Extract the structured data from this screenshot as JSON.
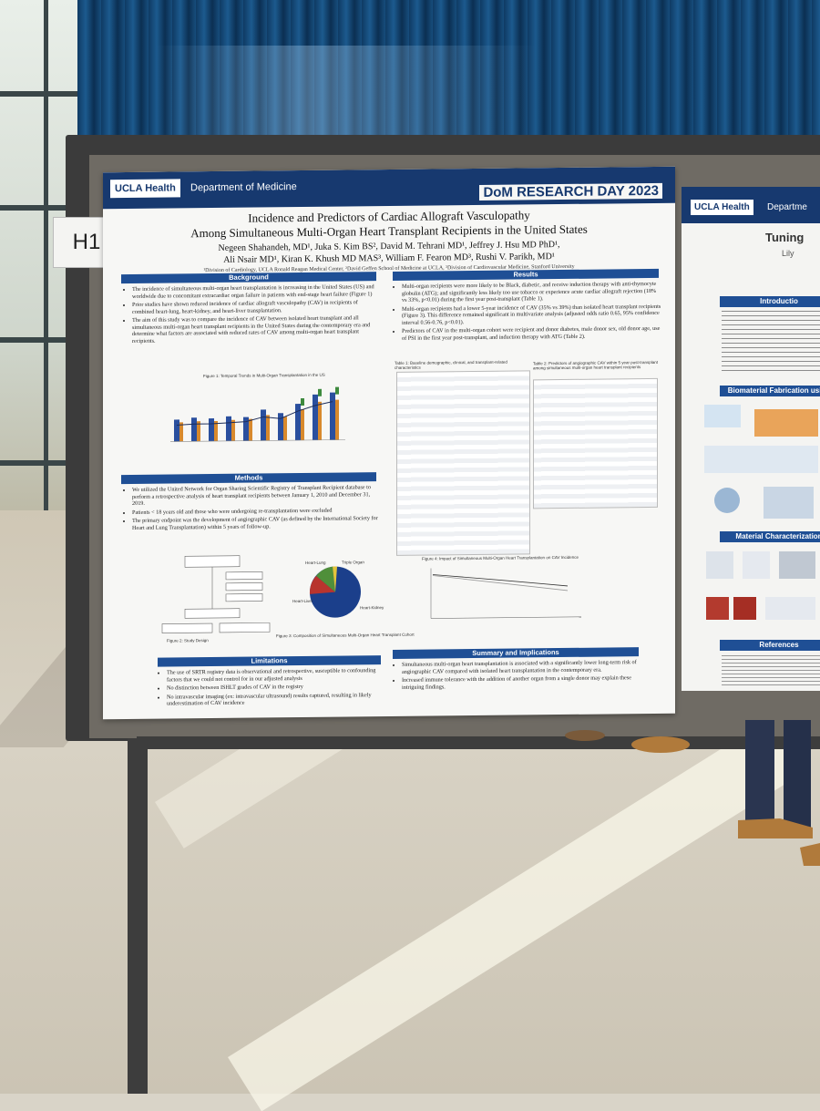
{
  "board_tag": "H1",
  "poster": {
    "brand": "UCLA Health",
    "department": "Department of Medicine",
    "event": "DoM RESEARCH DAY 2023",
    "title_line1": "Incidence and Predictors of Cardiac Allograft Vasculopathy",
    "title_line2": "Among Simultaneous Multi-Organ Heart Transplant Recipients in the United States",
    "authors_line1": "Negeen Shahandeh, MD¹, Juka S. Kim BS², David M. Tehrani MD¹, Jeffrey J. Hsu MD PhD¹,",
    "authors_line2": "Ali Nsair MD¹, Kiran K. Khush MD MAS³, William F. Fearon MD³, Rushi V. Parikh, MD¹",
    "affiliations": "¹Division of Cardiology, UCLA Ronald Reagan Medical Center, ²David Geffen School of Medicine at UCLA, ³Division of Cardiovascular Medicine, Stanford University",
    "sections": {
      "background": {
        "heading": "Background",
        "bullets": [
          "The incidence of simultaneous multi-organ heart transplantation is increasing in the United States (US) and worldwide due to concomitant extracardiac organ failure in patients with end-stage heart failure (Figure 1)",
          "Prior studies have shown reduced incidence of cardiac allograft vasculopathy (CAV) in recipients of combined heart-lung, heart-kidney, and heart-liver transplantation.",
          "The aim of this study was to compare the incidence of CAV between isolated heart transplant and all simultaneous multi-organ heart transplant recipients in the United States during the contemporary era and determine what factors are associated with reduced rates of CAV among multi-organ heart transplant recipients."
        ],
        "figure1_caption": "Figure 1: Temporal Trends in Multi-Organ Transplantation in the US"
      },
      "methods": {
        "heading": "Methods",
        "bullets": [
          "We utilized the United Network for Organ Sharing Scientific Registry of Transplant Recipient database to perform a retrospective analysis of heart transplant recipients between January 1, 2010 and December 31, 2019.",
          "Patients < 18 years old and those who were undergoing re-transplantation were excluded",
          "The primary endpoint was the development of angiographic CAV (as defined by the International Society for Heart and Lung Transplantation) within 5 years of follow-up."
        ],
        "figure2_caption": "Figure 2: Study Design",
        "pie_caption": "Figure 3: Composition of Simultaneous Multi-Organ Heart Transplant Cohort",
        "pie_labels": [
          "Triple Organ",
          "Heart-Lung",
          "Heart-Liver",
          "Heart-Kidney"
        ]
      },
      "results": {
        "heading": "Results",
        "bullets": [
          "Multi-organ recipients were more likely to be Black, diabetic, and receive induction therapy with anti-thymocyte globulin (ATG); and significantly less likely too use tobacco or experience acute cardiac allograft rejection (18% vs 33%, p<0.01) during the first year post-transplant (Table 1).",
          "Multi-organ recipients had a lower 5-year incidence of CAV (35% vs 39%) than isolated heart transplant recipients (Figure 3). This difference remained significant in multivariate analysis (adjusted odds ratio 0.65, 95% confidence interval 0.56-0.76, p<0.01).",
          "Predictors of CAV in the multi-organ cohort were recipient and donor diabetes, male donor sex, old donor age, use of PSI in the first year post-transplant, and induction therapy with ATG (Table 2)."
        ],
        "table1_caption": "Table 1: Baseline demographic, clinical, and transplant-related characteristics",
        "table2_caption": "Table 2: Predictors of angiographic CAV within 5 year post-transplant among simultaneous multi-organ heart transplant recipients",
        "figure4_caption": "Figure 4: Impact of Simultaneous Multi-Organ Heart Transplantation on CAV Incidence"
      },
      "limitations": {
        "heading": "Limitations",
        "bullets": [
          "The use of SRTR registry data is observational and retrospective, susceptible to confounding factors that we could not control for in our adjusted analysis",
          "No distinction between ISHLT grades of CAV in the registry",
          "No intravascular imaging (ex: intravascular ultrasound) results captured, resulting in likely underestimation of CAV incidence"
        ]
      },
      "summary": {
        "heading": "Summary and Implications",
        "bullets": [
          "Simultaneous multi-organ heart transplantation is associated with a significantly lower long-term risk of angiographic CAV compared with isolated heart transplantation in the contemporary era.",
          "Increased immune tolerance with the addition of another organ from a single donor may explain these intriguing findings."
        ]
      }
    }
  },
  "poster2": {
    "brand": "UCLA Health",
    "department": "Departme",
    "title_fragment": "Tuning",
    "author_fragment": "Lily",
    "sections": [
      "Introductio",
      "Biomaterial Fabrication using",
      "Material Characterization",
      "References"
    ]
  },
  "colors": {
    "poster_header": "#17396f",
    "section_bar": "#1f4f95",
    "pie": [
      "#1b3f8b",
      "#b8342e",
      "#4f8f3a",
      "#e2c43c"
    ]
  }
}
